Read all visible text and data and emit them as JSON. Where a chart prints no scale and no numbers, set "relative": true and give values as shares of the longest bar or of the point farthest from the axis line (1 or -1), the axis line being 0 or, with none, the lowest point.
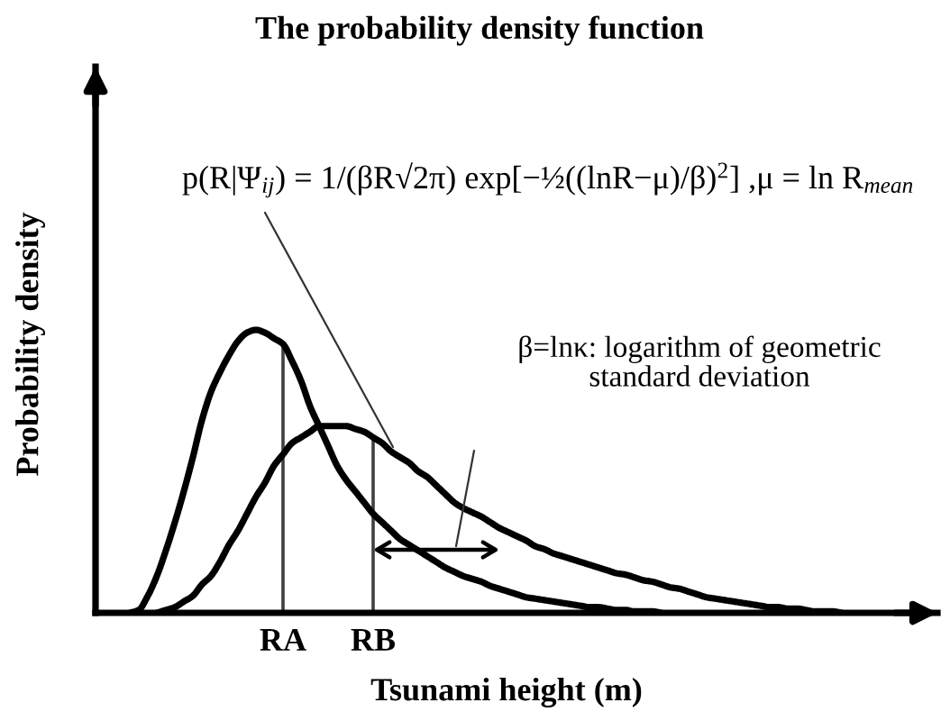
{
  "chart_data": {
    "type": "line",
    "title": "The probability density function",
    "xlabel": "Tsunami height (m)",
    "ylabel": "Probability density",
    "relative": true,
    "categories": [
      null,
      null,
      null,
      null,
      null,
      null,
      null,
      null,
      null,
      null,
      null,
      null,
      null,
      null,
      null,
      null,
      null,
      null,
      null,
      null,
      "RA",
      null,
      null,
      null,
      null,
      null,
      null,
      null,
      null,
      null,
      "RB",
      null,
      null,
      null,
      null,
      null,
      null,
      null,
      null,
      null,
      null,
      null,
      null,
      null,
      null,
      null,
      null,
      null,
      null,
      null,
      null,
      null,
      null,
      null,
      null,
      null,
      null,
      null,
      null,
      null,
      null,
      null,
      null,
      null,
      null,
      null,
      null,
      null,
      null,
      null,
      null,
      null,
      null,
      null,
      null,
      null,
      null,
      null,
      null,
      null,
      null,
      null,
      null,
      null,
      null,
      null,
      null,
      null,
      null,
      null,
      null,
      null,
      null
    ],
    "series": [
      {
        "color": "#000000",
        "values": [
          null,
          null,
          null,
          0,
          0.01,
          0.06,
          0.13,
          0.22,
          0.32,
          0.43,
          0.55,
          0.68,
          0.78,
          0.85,
          0.91,
          0.96,
          0.99,
          1.0,
          0.99,
          0.97,
          0.95,
          0.89,
          0.82,
          0.73,
          0.66,
          0.59,
          0.52,
          0.47,
          0.43,
          0.39,
          0.35,
          0.32,
          0.29,
          0.26,
          0.24,
          0.22,
          0.2,
          0.18,
          0.16,
          0.145,
          0.13,
          0.12,
          0.11,
          0.095,
          0.085,
          0.075,
          0.065,
          0.055,
          0.05,
          0.045,
          0.04,
          0.035,
          0.03,
          0.025,
          0.02,
          0.02,
          0.015,
          0.01,
          0.01,
          0.005,
          0.005,
          0.005,
          0,
          null,
          null,
          null,
          null,
          null,
          null,
          null,
          null,
          null,
          null,
          null,
          null,
          null,
          null,
          null,
          null,
          null,
          null,
          null,
          null,
          null,
          null,
          null,
          null,
          null,
          null,
          null,
          null,
          null,
          null
        ]
      },
      {
        "color": "#000000",
        "values": [
          null,
          null,
          null,
          null,
          null,
          null,
          0,
          0.01,
          0.02,
          0.04,
          0.06,
          0.1,
          0.13,
          0.18,
          0.24,
          0.29,
          0.35,
          0.41,
          0.46,
          0.52,
          0.56,
          0.6,
          0.62,
          0.64,
          0.66,
          0.66,
          0.66,
          0.66,
          0.65,
          0.64,
          0.62,
          0.6,
          0.57,
          0.55,
          0.53,
          0.5,
          0.48,
          0.45,
          0.42,
          0.39,
          0.37,
          0.355,
          0.34,
          0.32,
          0.3,
          0.285,
          0.27,
          0.255,
          0.235,
          0.225,
          0.21,
          0.2,
          0.19,
          0.18,
          0.17,
          0.16,
          0.15,
          0.14,
          0.135,
          0.125,
          0.115,
          0.11,
          0.1,
          0.09,
          0.085,
          0.075,
          0.065,
          0.055,
          0.05,
          0.045,
          0.04,
          0.035,
          0.03,
          0.025,
          0.02,
          0.02,
          0.015,
          0.015,
          0.01,
          0.005,
          0.005,
          0.005,
          0,
          null,
          null,
          null,
          null,
          null,
          null,
          null,
          null,
          null,
          null
        ]
      }
    ],
    "ref_lines": [
      {
        "axis": "x",
        "value": "RA",
        "color": "#404040"
      },
      {
        "axis": "x",
        "value": "RB",
        "color": "#404040"
      }
    ],
    "annotations": [
      "p(R|Ψ$_{ij}$) = 1/(βR√2π) exp[−½((lnR−μ)/β)$^{2}$] ,μ = ln R$_{mean}$",
      "β=lnκ: logarithm of geometric\nstandard deviation"
    ]
  }
}
